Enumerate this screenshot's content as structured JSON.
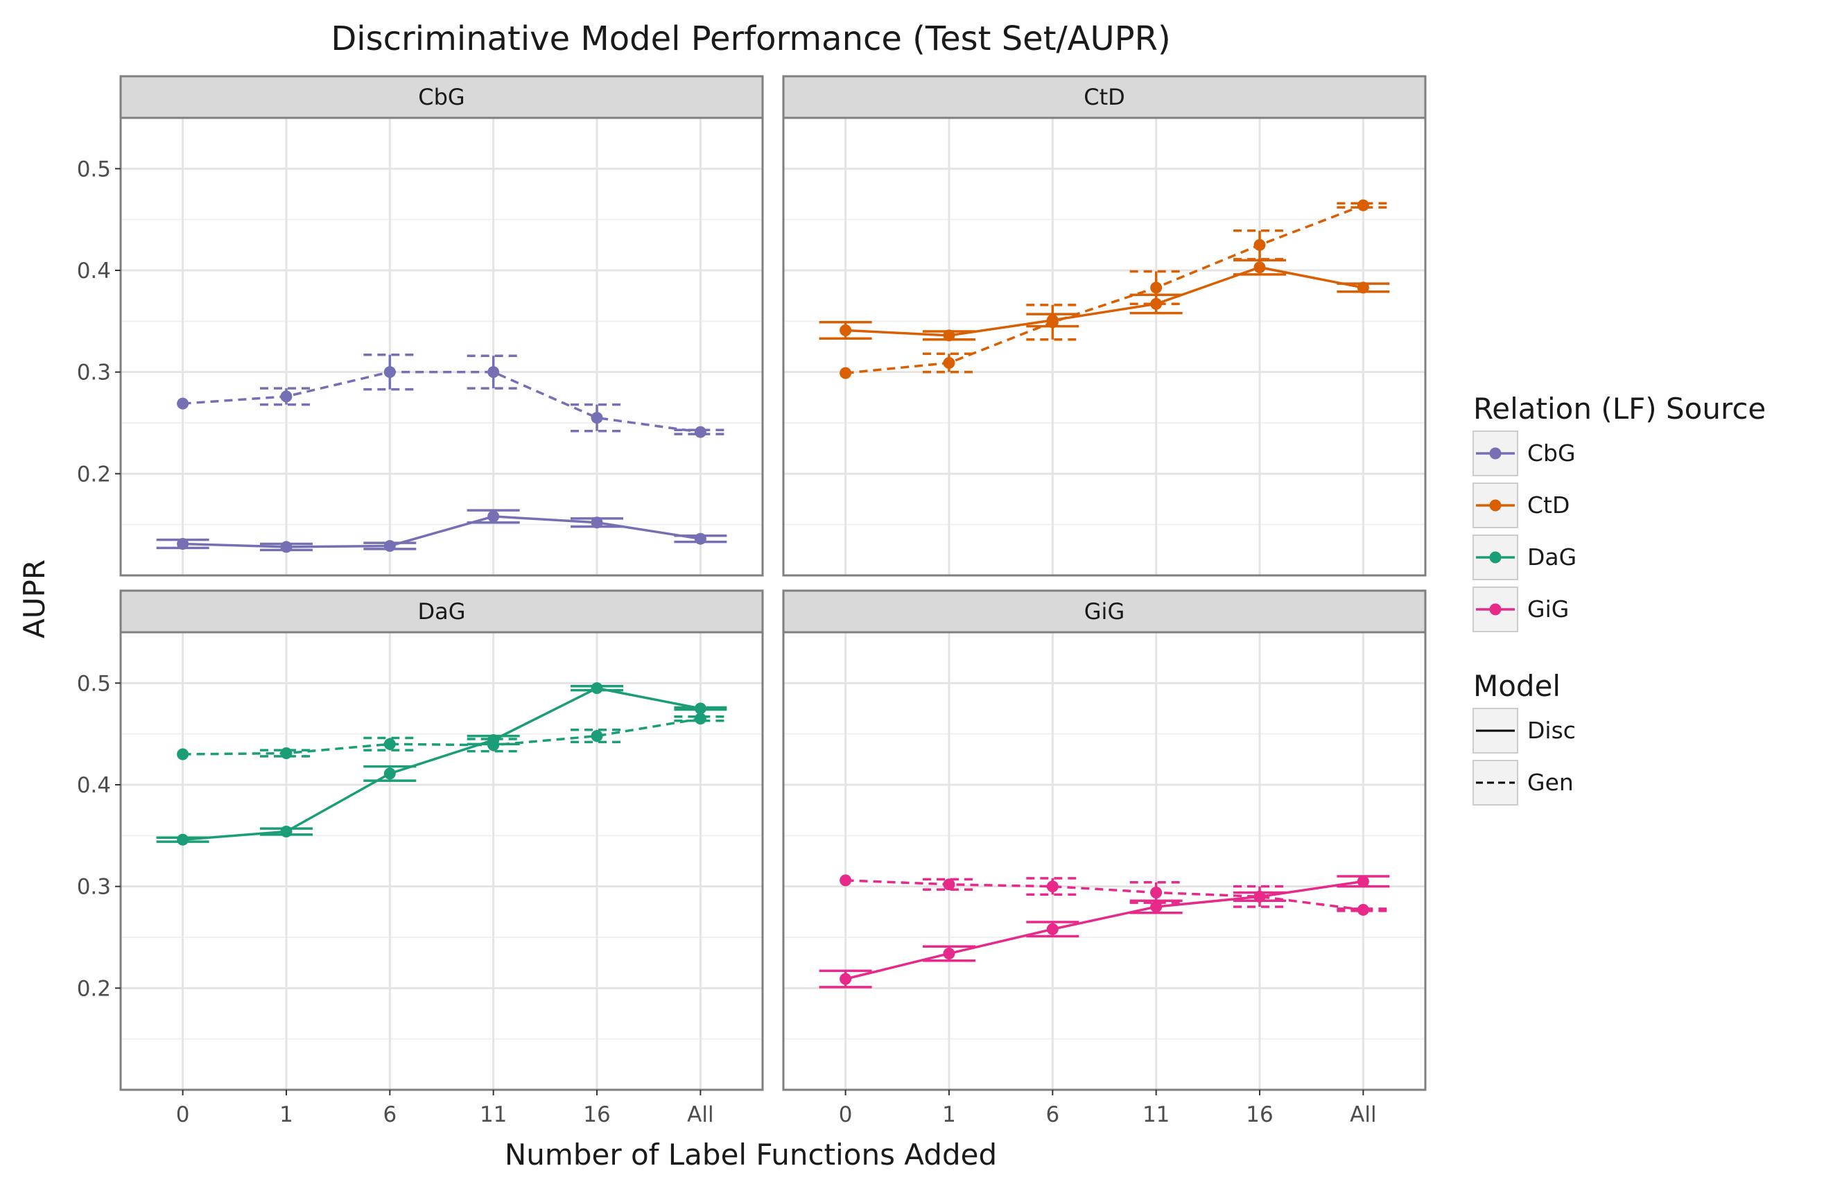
{
  "chart_data": {
    "type": "line",
    "title": "Discriminative Model Performance (Test Set/AUPR)",
    "xlabel": "Number of Label Functions Added",
    "ylabel": "AUPR",
    "categories": [
      "0",
      "1",
      "6",
      "11",
      "16",
      "All"
    ],
    "ylim": [
      0.1,
      0.55
    ],
    "yticks": [
      0.2,
      0.3,
      0.4,
      0.5
    ],
    "grid": true,
    "legend_position": "right",
    "legend": {
      "color_title": "Relation (LF) Source",
      "linetype_title": "Model",
      "sources": [
        {
          "name": "CbG",
          "color": "#7570b3"
        },
        {
          "name": "CtD",
          "color": "#d95f02"
        },
        {
          "name": "DaG",
          "color": "#1b9e77"
        },
        {
          "name": "GiG",
          "color": "#e7298a"
        }
      ],
      "models": [
        {
          "name": "Disc",
          "dash": "solid"
        },
        {
          "name": "Gen",
          "dash": "dashed"
        }
      ]
    },
    "facets": [
      {
        "name": "CbG",
        "color": "#7570b3",
        "series": [
          {
            "model": "Disc",
            "values": [
              0.131,
              0.128,
              0.129,
              0.158,
              0.152,
              0.136
            ],
            "err": [
              0.004,
              0.003,
              0.003,
              0.006,
              0.004,
              0.003
            ]
          },
          {
            "model": "Gen",
            "values": [
              0.269,
              0.276,
              0.3,
              0.3,
              0.255,
              0.241
            ],
            "err": [
              0.0,
              0.008,
              0.017,
              0.016,
              0.013,
              0.002
            ]
          }
        ]
      },
      {
        "name": "CtD",
        "color": "#d95f02",
        "series": [
          {
            "model": "Disc",
            "values": [
              0.341,
              0.336,
              0.351,
              0.367,
              0.403,
              0.383
            ],
            "err": [
              0.008,
              0.004,
              0.006,
              0.009,
              0.007,
              0.004
            ]
          },
          {
            "model": "Gen",
            "values": [
              0.299,
              0.309,
              0.349,
              0.383,
              0.425,
              0.464
            ],
            "err": [
              0.0,
              0.009,
              0.017,
              0.016,
              0.014,
              0.002
            ]
          }
        ]
      },
      {
        "name": "DaG",
        "color": "#1b9e77",
        "series": [
          {
            "model": "Disc",
            "values": [
              0.346,
              0.354,
              0.411,
              0.444,
              0.495,
              0.475
            ],
            "err": [
              0.002,
              0.003,
              0.007,
              0.004,
              0.002,
              0.001
            ]
          },
          {
            "model": "Gen",
            "values": [
              0.43,
              0.431,
              0.44,
              0.439,
              0.448,
              0.465
            ],
            "err": [
              0.0,
              0.003,
              0.006,
              0.006,
              0.006,
              0.002
            ]
          }
        ]
      },
      {
        "name": "GiG",
        "color": "#e7298a",
        "series": [
          {
            "model": "Disc",
            "values": [
              0.209,
              0.234,
              0.258,
              0.28,
              0.29,
              0.305
            ],
            "err": [
              0.008,
              0.007,
              0.007,
              0.006,
              0.004,
              0.005
            ]
          },
          {
            "model": "Gen",
            "values": [
              0.306,
              0.302,
              0.3,
              0.294,
              0.29,
              0.277
            ],
            "err": [
              0.0,
              0.005,
              0.008,
              0.01,
              0.01,
              0.001
            ]
          }
        ]
      }
    ]
  }
}
